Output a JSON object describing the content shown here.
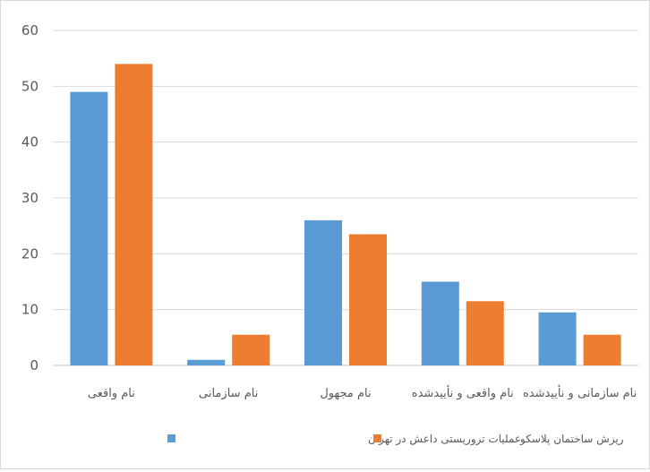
{
  "chart_data": {
    "type": "bar",
    "categories": [
      "نام واقعی",
      "نام سازمانی",
      "نام مجهول",
      "نام واقعی و نأییدشده",
      "نام سازمانی و نأییدشده"
    ],
    "series": [
      {
        "name": "عملیات تروریستی داعش در تهران",
        "color": "#5b9bd5",
        "values": [
          49,
          1,
          26,
          15,
          9.5
        ]
      },
      {
        "name": "ریزش ساختمان پلاسکو",
        "color": "#ed7d31",
        "values": [
          54,
          5.5,
          23.5,
          11.5,
          5.5
        ]
      }
    ],
    "ylim": [
      0,
      60
    ],
    "yticks": [
      0,
      10,
      20,
      30,
      40,
      50,
      60
    ],
    "grid": true,
    "legend_position": "bottom"
  }
}
